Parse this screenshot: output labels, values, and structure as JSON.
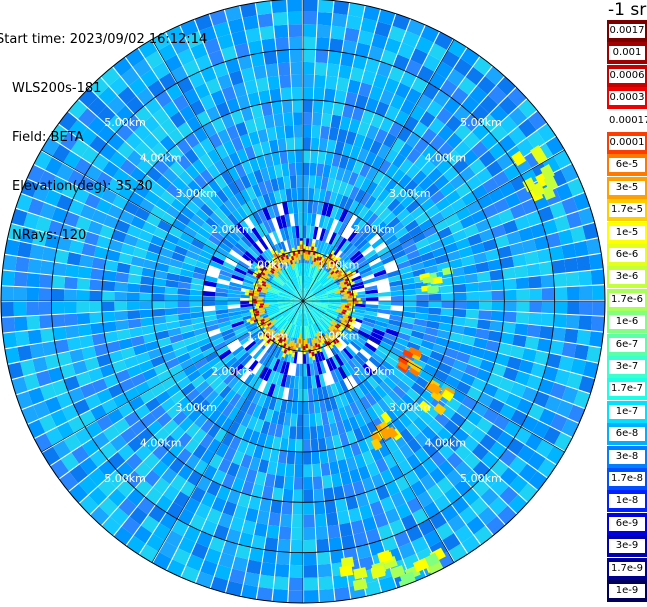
{
  "info": {
    "start_label": "Start time:",
    "start_value": "2023/09/02 16:12:14",
    "device": "WLS200s-181",
    "field_label": "Field:",
    "field_value": "BETA",
    "elevation_label": "Elevation(deg):",
    "elevation_value": "35.30",
    "nrays_label": "NRays:",
    "nrays_value": "120"
  },
  "colorbar": {
    "unit": "-1 sr",
    "ticks": [
      "0.0017",
      "0.001",
      "0.0006",
      "0.0003",
      "0.00017",
      "0.0001",
      "6e-5",
      "3e-5",
      "1.7e-5",
      "1e-5",
      "6e-6",
      "3e-6",
      "1.7e-6",
      "1e-6",
      "6e-7",
      "3e-7",
      "1.7e-7",
      "1e-7",
      "6e-8",
      "3e-8",
      "1.7e-8",
      "1e-8",
      "6e-9",
      "3e-9",
      "1.7e-9",
      "1e-9"
    ],
    "colors": [
      "#7a0000",
      "#a00000",
      "#c80000",
      "#f00000",
      "#ffffff",
      "#ff3c00",
      "#ff7800",
      "#ffa000",
      "#ffcc00",
      "#ffff00",
      "#e6ff1a",
      "#c4ff3c",
      "#a8ff5a",
      "#80ff80",
      "#5affa8",
      "#3cffd0",
      "#1affe6",
      "#00e0ff",
      "#00b0ff",
      "#0080ff",
      "#0050ff",
      "#0020ff",
      "#0000e0",
      "#0000b0",
      "#000090",
      "#00005a"
    ]
  },
  "chart_data": {
    "type": "heatmap",
    "projection": "polar-ppi",
    "field": "BETA",
    "unit": "-1 sr",
    "n_rays": 120,
    "range_rings_km": [
      1.0,
      2.0,
      3.0,
      4.0,
      5.0
    ],
    "ring_labels": [
      "1.00km",
      "2.00km",
      "3.00km",
      "4.00km",
      "5.00km"
    ],
    "max_range_km": 6.0,
    "spokes_deg": [
      0,
      30,
      60,
      90,
      120,
      150,
      180,
      210,
      240,
      270,
      300,
      330
    ],
    "features": {
      "near_ring_km": 0.9,
      "near_ring_value": "0.0006",
      "inner_fill_value": "1.7e-7",
      "background_value": "6e-8",
      "patches": [
        {
          "bearing_deg": 118,
          "range_km": 2.3,
          "value": "1.7e-5"
        },
        {
          "bearing_deg": 125,
          "range_km": 3.2,
          "value": "3e-5"
        },
        {
          "bearing_deg": 148,
          "range_km": 2.9,
          "value": "3e-5"
        },
        {
          "bearing_deg": 60,
          "range_km": 5.2,
          "value": "6e-6"
        },
        {
          "bearing_deg": 80,
          "range_km": 2.6,
          "value": "1.7e-6"
        },
        {
          "bearing_deg": 165,
          "range_km": 5.4,
          "value": "6e-6"
        },
        {
          "bearing_deg": 155,
          "range_km": 5.8,
          "value": "3e-6"
        }
      ]
    }
  }
}
